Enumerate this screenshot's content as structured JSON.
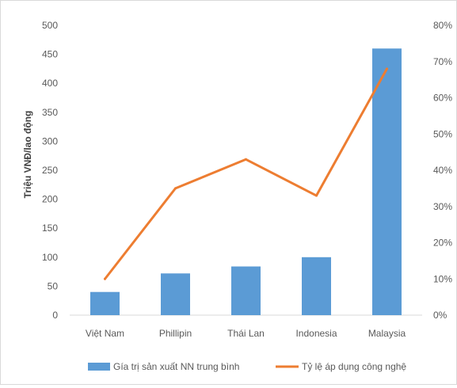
{
  "chart_data": {
    "type": "bar",
    "categories": [
      "Việt Nam",
      "Phillipin",
      "Thái Lan",
      "Indonesia",
      "Malaysia"
    ],
    "series": [
      {
        "name": "Gía trị sản xuất NN trung bình",
        "type": "bar",
        "axis": "left",
        "color": "#5b9bd5",
        "values": [
          40,
          72,
          84,
          100,
          460
        ]
      },
      {
        "name": "Tỷ lệ áp dụng công nghệ",
        "type": "line",
        "axis": "right",
        "color": "#ed7d31",
        "values": [
          0.1,
          0.35,
          0.43,
          0.33,
          0.68
        ]
      }
    ],
    "ylabel": "Triệu VNĐ/lao động",
    "ylim": [
      0,
      500
    ],
    "yticks": [
      "0",
      "50",
      "100",
      "150",
      "200",
      "250",
      "300",
      "350",
      "400",
      "450",
      "500"
    ],
    "y2lim": [
      0,
      0.8
    ],
    "y2ticks": [
      "0%",
      "10%",
      "20%",
      "30%",
      "40%",
      "50%",
      "60%",
      "70%",
      "80%"
    ],
    "grid": false,
    "legend_position": "bottom"
  }
}
